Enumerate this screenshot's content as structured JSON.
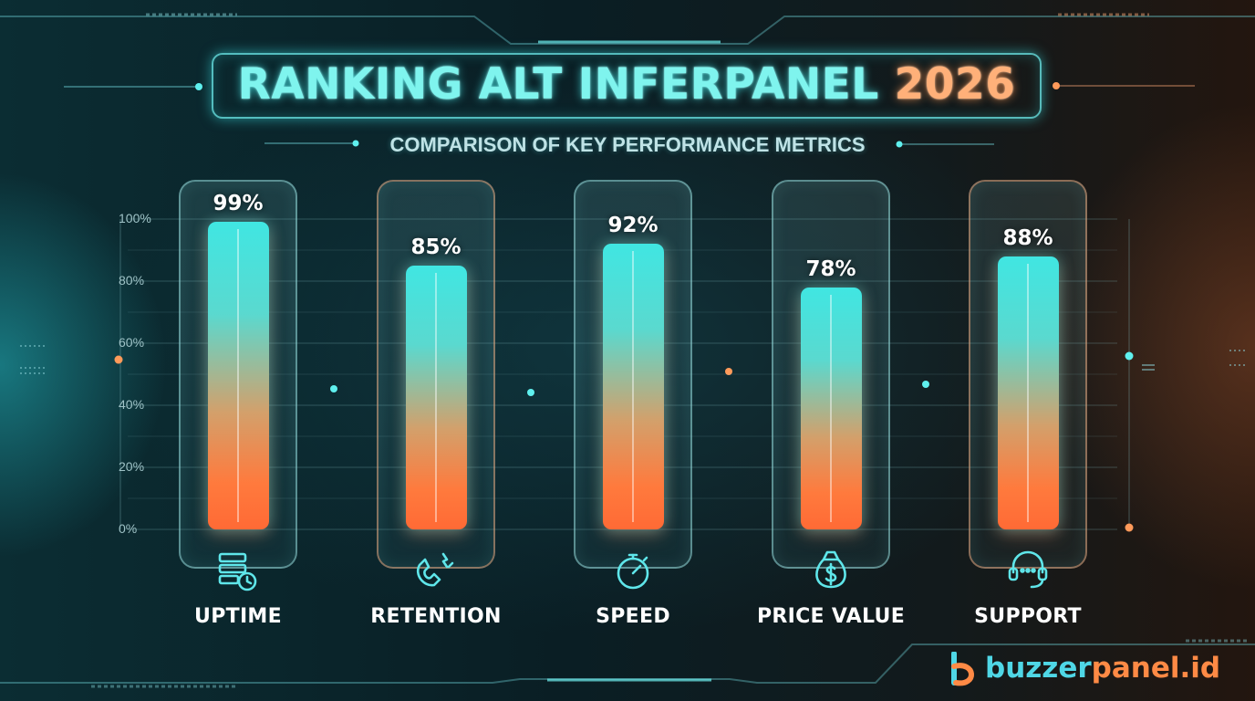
{
  "title": "RANKING ALT INFERPANEL",
  "title_year": "2026",
  "subtitle": "COMPARISON OF KEY PERFORMANCE METRICS",
  "brand": {
    "part1": "buzzer",
    "part2": "panel.id",
    "logo_icon": "b-logo-icon"
  },
  "colors": {
    "cyan": "#40e6e2",
    "orange": "#ff7a3d",
    "background": "#0b2328"
  },
  "chart_data": {
    "type": "bar",
    "title": "RANKING ALT INFERPANEL 2026",
    "subtitle": "COMPARISON OF KEY PERFORMANCE METRICS",
    "categories": [
      "UPTIME",
      "RETENTION",
      "SPEED",
      "PRICE VALUE",
      "SUPPORT"
    ],
    "values": [
      99,
      85,
      92,
      78,
      88
    ],
    "value_labels": [
      "99%",
      "85%",
      "92%",
      "78%",
      "88%"
    ],
    "icons": [
      "server-clock-icon",
      "magnet-icon",
      "stopwatch-icon",
      "money-bag-icon",
      "headset-icon"
    ],
    "y_ticks": [
      "100%",
      "80%",
      "60%",
      "40%",
      "20%",
      "0%"
    ],
    "ylim": [
      0,
      100
    ],
    "grid": true,
    "legend": "none"
  }
}
